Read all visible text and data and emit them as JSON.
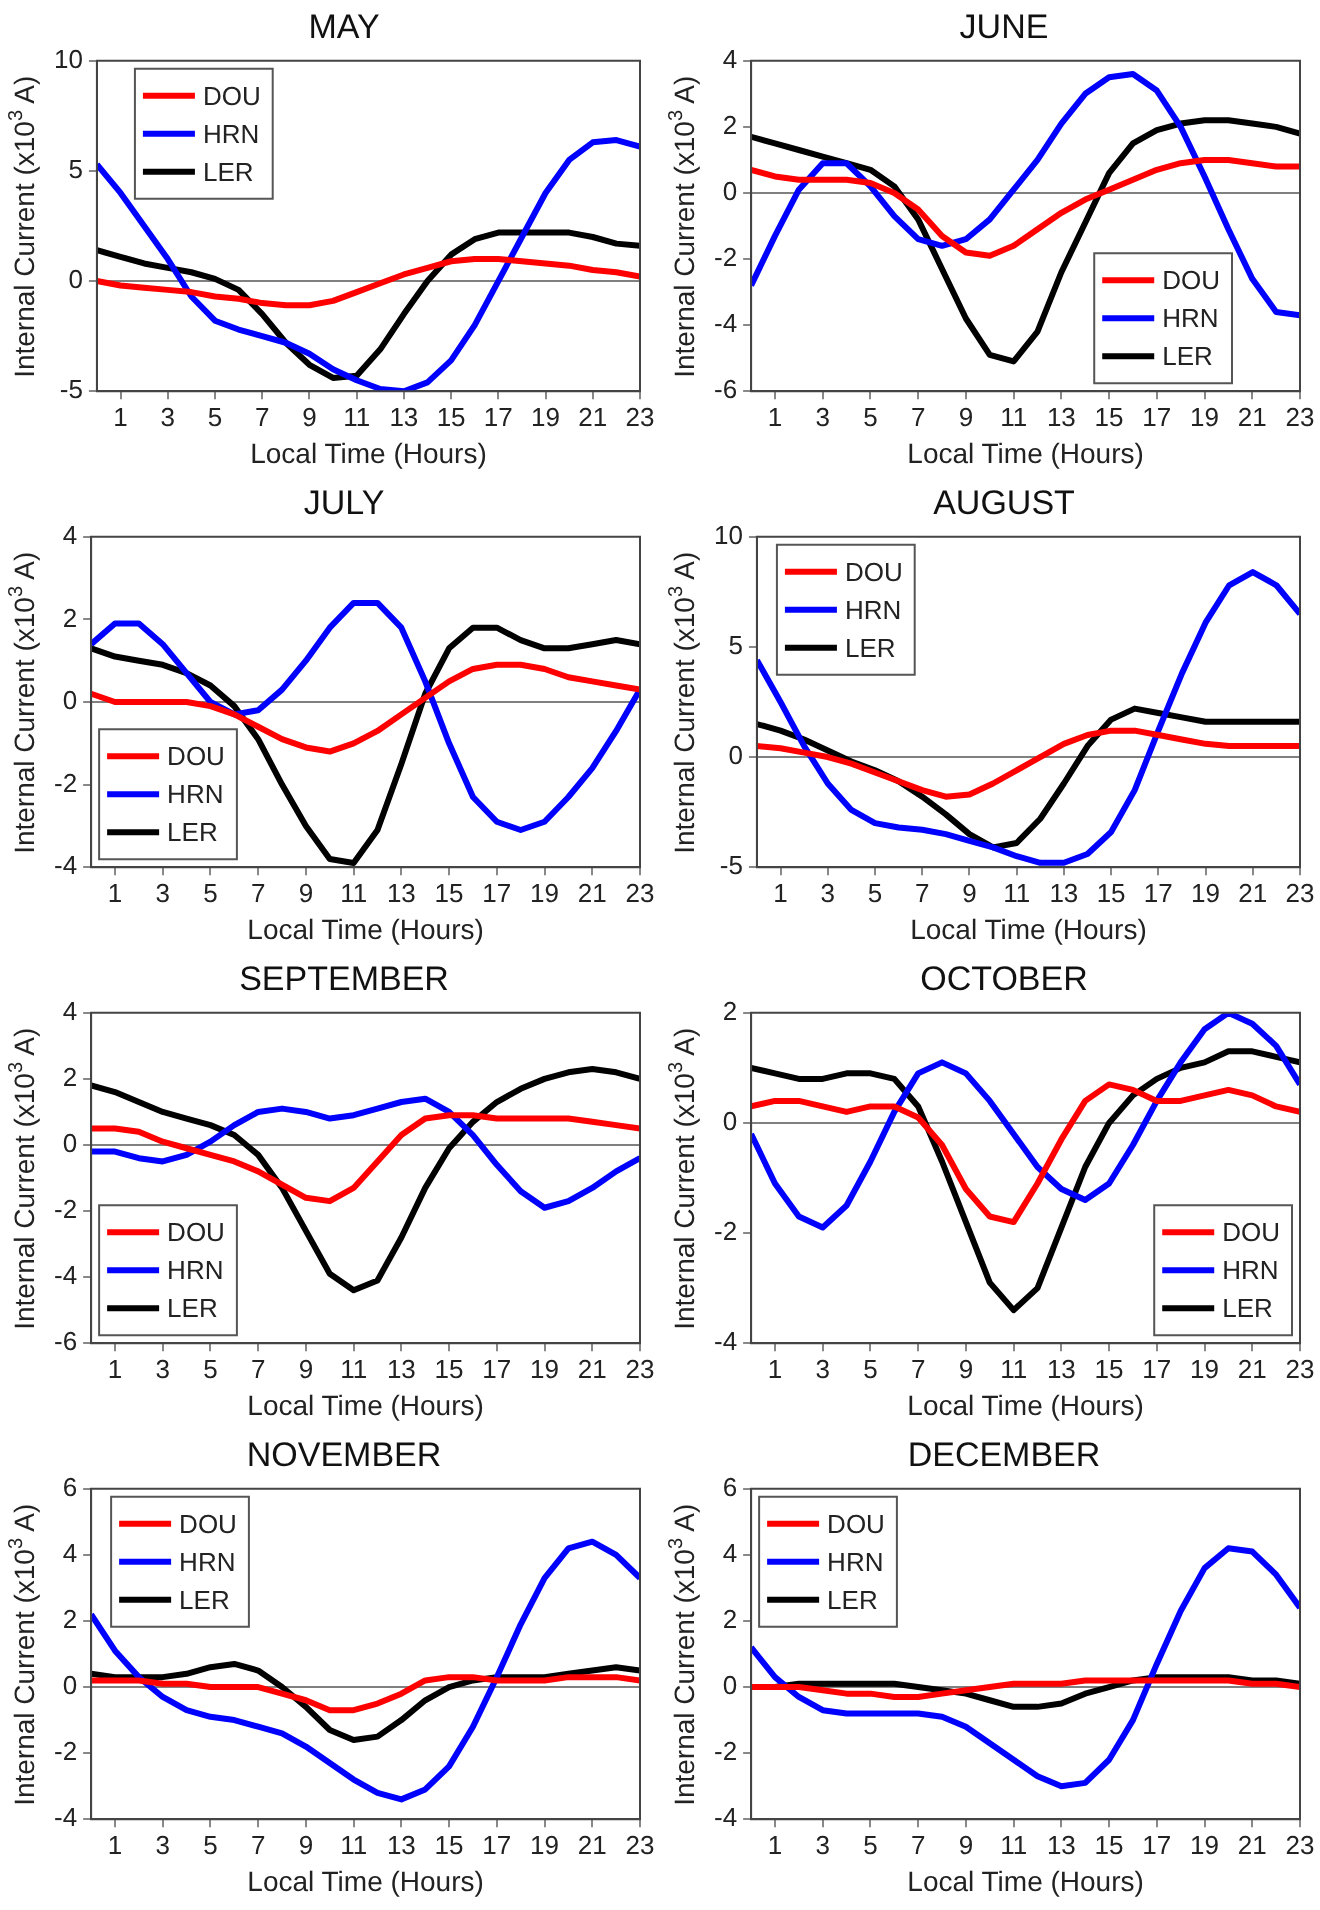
{
  "chart_data": [
    {
      "type": "line",
      "title": "MAY",
      "xlabel": "Local Time (Hours)",
      "ylabel": "Internal Current (x10$^{3}$ A)",
      "x": [
        0,
        1,
        2,
        3,
        4,
        5,
        6,
        7,
        8,
        9,
        10,
        11,
        12,
        13,
        14,
        15,
        16,
        17,
        18,
        19,
        20,
        21,
        22,
        23
      ],
      "xlim": [
        0,
        23
      ],
      "xticks": [
        1,
        3,
        5,
        7,
        9,
        11,
        13,
        15,
        17,
        19,
        21,
        23
      ],
      "ylim": [
        -5,
        10
      ],
      "yticks": [
        -5,
        0,
        5,
        10
      ],
      "legend": "top left",
      "ref_lines": [
        {
          "axis": "y",
          "value": 0,
          "color": "#808080"
        }
      ],
      "series": [
        {
          "name": "DOU",
          "color": "#ff0000",
          "values": [
            0,
            -0.2,
            -0.3,
            -0.4,
            -0.5,
            -0.7,
            -0.8,
            -1.0,
            -1.1,
            -1.1,
            -0.9,
            -0.5,
            -0.1,
            0.3,
            0.6,
            0.9,
            1.0,
            1.0,
            0.9,
            0.8,
            0.7,
            0.5,
            0.4,
            0.2
          ]
        },
        {
          "name": "HRN",
          "color": "#0000ff",
          "values": [
            5.3,
            4.0,
            2.5,
            1.0,
            -0.7,
            -1.8,
            -2.2,
            -2.5,
            -2.8,
            -3.3,
            -4.0,
            -4.5,
            -4.9,
            -5.0,
            -4.6,
            -3.6,
            -2.0,
            0.0,
            2.0,
            4.0,
            5.5,
            6.3,
            6.4,
            6.1
          ]
        },
        {
          "name": "LER",
          "color": "#000000",
          "values": [
            1.4,
            1.1,
            0.8,
            0.6,
            0.4,
            0.1,
            -0.4,
            -1.5,
            -2.8,
            -3.8,
            -4.4,
            -4.3,
            -3.1,
            -1.5,
            0.0,
            1.2,
            1.9,
            2.2,
            2.2,
            2.2,
            2.2,
            2.0,
            1.7,
            1.6
          ]
        }
      ]
    },
    {
      "type": "line",
      "title": "JUNE",
      "xlabel": "Local Time (Hours)",
      "ylabel": "Internal Current (x10$^{3}$ A)",
      "x": [
        0,
        1,
        2,
        3,
        4,
        5,
        6,
        7,
        8,
        9,
        10,
        11,
        12,
        13,
        14,
        15,
        16,
        17,
        18,
        19,
        20,
        21,
        22,
        23
      ],
      "xlim": [
        0,
        23
      ],
      "xticks": [
        1,
        3,
        5,
        7,
        9,
        11,
        13,
        15,
        17,
        19,
        21,
        23
      ],
      "ylim": [
        -6,
        4
      ],
      "yticks": [
        -6,
        -4,
        -2,
        0,
        2,
        4
      ],
      "legend": "bottom right",
      "ref_lines": [
        {
          "axis": "y",
          "value": 0,
          "color": "#808080"
        }
      ],
      "series": [
        {
          "name": "DOU",
          "color": "#ff0000",
          "values": [
            0.7,
            0.5,
            0.4,
            0.4,
            0.4,
            0.3,
            0.0,
            -0.5,
            -1.3,
            -1.8,
            -1.9,
            -1.6,
            -1.1,
            -0.6,
            -0.2,
            0.1,
            0.4,
            0.7,
            0.9,
            1.0,
            1.0,
            0.9,
            0.8,
            0.8
          ]
        },
        {
          "name": "HRN",
          "color": "#0000ff",
          "values": [
            -2.8,
            -1.3,
            0.1,
            0.9,
            0.9,
            0.2,
            -0.7,
            -1.4,
            -1.6,
            -1.4,
            -0.8,
            0.1,
            1.0,
            2.1,
            3.0,
            3.5,
            3.6,
            3.1,
            2.0,
            0.5,
            -1.1,
            -2.6,
            -3.6,
            -3.7
          ]
        },
        {
          "name": "LER",
          "color": "#000000",
          "values": [
            1.7,
            1.5,
            1.3,
            1.1,
            0.9,
            0.7,
            0.2,
            -0.8,
            -2.3,
            -3.8,
            -4.9,
            -5.1,
            -4.2,
            -2.4,
            -0.9,
            0.6,
            1.5,
            1.9,
            2.1,
            2.2,
            2.2,
            2.1,
            2.0,
            1.8
          ]
        }
      ]
    },
    {
      "type": "line",
      "title": "JULY",
      "xlabel": "Local Time (Hours)",
      "ylabel": "Internal Current (x10$^{3}$ A)",
      "x": [
        0,
        1,
        2,
        3,
        4,
        5,
        6,
        7,
        8,
        9,
        10,
        11,
        12,
        13,
        14,
        15,
        16,
        17,
        18,
        19,
        20,
        21,
        22,
        23
      ],
      "xlim": [
        0,
        23
      ],
      "xticks": [
        1,
        3,
        5,
        7,
        9,
        11,
        13,
        15,
        17,
        19,
        21,
        23
      ],
      "ylim": [
        -4,
        4
      ],
      "yticks": [
        -4,
        -2,
        0,
        2,
        4
      ],
      "legend": "bottom left",
      "ref_lines": [
        {
          "axis": "y",
          "value": 0,
          "color": "#808080"
        }
      ],
      "series": [
        {
          "name": "DOU",
          "color": "#ff0000",
          "values": [
            0.2,
            0.0,
            0.0,
            0.0,
            0.0,
            -0.1,
            -0.3,
            -0.6,
            -0.9,
            -1.1,
            -1.2,
            -1.0,
            -0.7,
            -0.3,
            0.1,
            0.5,
            0.8,
            0.9,
            0.9,
            0.8,
            0.6,
            0.5,
            0.4,
            0.3
          ]
        },
        {
          "name": "HRN",
          "color": "#0000ff",
          "values": [
            1.4,
            1.9,
            1.9,
            1.4,
            0.7,
            0.0,
            -0.3,
            -0.2,
            0.3,
            1.0,
            1.8,
            2.4,
            2.4,
            1.8,
            0.5,
            -1.0,
            -2.3,
            -2.9,
            -3.1,
            -2.9,
            -2.3,
            -1.6,
            -0.7,
            0.3
          ]
        },
        {
          "name": "LER",
          "color": "#000000",
          "values": [
            1.3,
            1.1,
            1.0,
            0.9,
            0.7,
            0.4,
            -0.1,
            -0.9,
            -2.0,
            -3.0,
            -3.8,
            -3.9,
            -3.1,
            -1.5,
            0.2,
            1.3,
            1.8,
            1.8,
            1.5,
            1.3,
            1.3,
            1.4,
            1.5,
            1.4
          ]
        }
      ]
    },
    {
      "type": "line",
      "title": "AUGUST",
      "xlabel": "Local Time (Hours)",
      "ylabel": "Internal Current (x10$^{3}$ A)",
      "x": [
        0,
        1,
        2,
        3,
        4,
        5,
        6,
        7,
        8,
        9,
        10,
        11,
        12,
        13,
        14,
        15,
        16,
        17,
        18,
        19,
        20,
        21,
        22,
        23
      ],
      "xlim": [
        0,
        23
      ],
      "xticks": [
        1,
        3,
        5,
        7,
        9,
        11,
        13,
        15,
        17,
        19,
        21,
        23
      ],
      "ylim": [
        -5,
        10
      ],
      "yticks": [
        -5,
        0,
        5,
        10
      ],
      "legend": "top left",
      "ref_lines": [
        {
          "axis": "y",
          "value": 0,
          "color": "#808080"
        }
      ],
      "series": [
        {
          "name": "DOU",
          "color": "#ff0000",
          "values": [
            0.5,
            0.4,
            0.2,
            0.0,
            -0.3,
            -0.7,
            -1.1,
            -1.5,
            -1.8,
            -1.7,
            -1.2,
            -0.6,
            0.0,
            0.6,
            1.0,
            1.2,
            1.2,
            1.0,
            0.8,
            0.6,
            0.5,
            0.5,
            0.5,
            0.5
          ]
        },
        {
          "name": "HRN",
          "color": "#0000ff",
          "values": [
            4.4,
            2.5,
            0.5,
            -1.2,
            -2.4,
            -3.0,
            -3.2,
            -3.3,
            -3.5,
            -3.8,
            -4.1,
            -4.5,
            -4.8,
            -4.8,
            -4.4,
            -3.4,
            -1.5,
            1.2,
            3.8,
            6.1,
            7.8,
            8.4,
            7.8,
            6.5
          ]
        },
        {
          "name": "LER",
          "color": "#000000",
          "values": [
            1.5,
            1.2,
            0.8,
            0.3,
            -0.2,
            -0.6,
            -1.1,
            -1.8,
            -2.6,
            -3.5,
            -4.1,
            -3.9,
            -2.8,
            -1.2,
            0.5,
            1.7,
            2.2,
            2.0,
            1.8,
            1.6,
            1.6,
            1.6,
            1.6,
            1.6
          ]
        }
      ]
    },
    {
      "type": "line",
      "title": "SEPTEMBER",
      "xlabel": "Local Time (Hours)",
      "ylabel": "Internal Current (x10$^{3}$ A)",
      "x": [
        0,
        1,
        2,
        3,
        4,
        5,
        6,
        7,
        8,
        9,
        10,
        11,
        12,
        13,
        14,
        15,
        16,
        17,
        18,
        19,
        20,
        21,
        22,
        23
      ],
      "xlim": [
        0,
        23
      ],
      "xticks": [
        1,
        3,
        5,
        7,
        9,
        11,
        13,
        15,
        17,
        19,
        21,
        23
      ],
      "ylim": [
        -6,
        4
      ],
      "yticks": [
        -6,
        -4,
        -2,
        0,
        2,
        4
      ],
      "legend": "bottom left",
      "ref_lines": [
        {
          "axis": "y",
          "value": 0,
          "color": "#808080"
        }
      ],
      "series": [
        {
          "name": "DOU",
          "color": "#ff0000",
          "values": [
            0.5,
            0.5,
            0.4,
            0.1,
            -0.1,
            -0.3,
            -0.5,
            -0.8,
            -1.2,
            -1.6,
            -1.7,
            -1.3,
            -0.5,
            0.3,
            0.8,
            0.9,
            0.9,
            0.8,
            0.8,
            0.8,
            0.8,
            0.7,
            0.6,
            0.5
          ]
        },
        {
          "name": "HRN",
          "color": "#0000ff",
          "values": [
            -0.2,
            -0.2,
            -0.4,
            -0.5,
            -0.3,
            0.1,
            0.6,
            1.0,
            1.1,
            1.0,
            0.8,
            0.9,
            1.1,
            1.3,
            1.4,
            1.0,
            0.3,
            -0.6,
            -1.4,
            -1.9,
            -1.7,
            -1.3,
            -0.8,
            -0.4
          ]
        },
        {
          "name": "LER",
          "color": "#000000",
          "values": [
            1.8,
            1.6,
            1.3,
            1.0,
            0.8,
            0.6,
            0.3,
            -0.3,
            -1.3,
            -2.6,
            -3.9,
            -4.4,
            -4.1,
            -2.8,
            -1.3,
            -0.1,
            0.7,
            1.3,
            1.7,
            2.0,
            2.2,
            2.3,
            2.2,
            2.0
          ]
        }
      ]
    },
    {
      "type": "line",
      "title": "OCTOBER",
      "xlabel": "Local Time (Hours)",
      "ylabel": "Internal Current (x10$^{3}$ A)",
      "x": [
        0,
        1,
        2,
        3,
        4,
        5,
        6,
        7,
        8,
        9,
        10,
        11,
        12,
        13,
        14,
        15,
        16,
        17,
        18,
        19,
        20,
        21,
        22,
        23
      ],
      "xlim": [
        0,
        23
      ],
      "xticks": [
        1,
        3,
        5,
        7,
        9,
        11,
        13,
        15,
        17,
        19,
        21,
        23
      ],
      "ylim": [
        -4,
        2
      ],
      "yticks": [
        -4,
        -2,
        0,
        2
      ],
      "legend": "bottom right",
      "ref_lines": [
        {
          "axis": "y",
          "value": 0,
          "color": "#808080"
        }
      ],
      "series": [
        {
          "name": "DOU",
          "color": "#ff0000",
          "values": [
            0.3,
            0.4,
            0.4,
            0.3,
            0.2,
            0.3,
            0.3,
            0.1,
            -0.4,
            -1.2,
            -1.7,
            -1.8,
            -1.1,
            -0.3,
            0.4,
            0.7,
            0.6,
            0.4,
            0.4,
            0.5,
            0.6,
            0.5,
            0.3,
            0.2
          ]
        },
        {
          "name": "HRN",
          "color": "#0000ff",
          "values": [
            -0.2,
            -1.1,
            -1.7,
            -1.9,
            -1.5,
            -0.7,
            0.2,
            0.9,
            1.1,
            0.9,
            0.4,
            -0.2,
            -0.8,
            -1.2,
            -1.4,
            -1.1,
            -0.4,
            0.4,
            1.1,
            1.7,
            2.0,
            1.8,
            1.4,
            0.7
          ]
        },
        {
          "name": "LER",
          "color": "#000000",
          "values": [
            1.0,
            0.9,
            0.8,
            0.8,
            0.9,
            0.9,
            0.8,
            0.3,
            -0.7,
            -1.8,
            -2.9,
            -3.4,
            -3.0,
            -1.9,
            -0.8,
            0.0,
            0.5,
            0.8,
            1.0,
            1.1,
            1.3,
            1.3,
            1.2,
            1.1
          ]
        }
      ]
    },
    {
      "type": "line",
      "title": "NOVEMBER",
      "xlabel": "Local Time (Hours)",
      "ylabel": "Internal Current (x10$^{3}$ A)",
      "x": [
        0,
        1,
        2,
        3,
        4,
        5,
        6,
        7,
        8,
        9,
        10,
        11,
        12,
        13,
        14,
        15,
        16,
        17,
        18,
        19,
        20,
        21,
        22,
        23
      ],
      "xlim": [
        0,
        23
      ],
      "xticks": [
        1,
        3,
        5,
        7,
        9,
        11,
        13,
        15,
        17,
        19,
        21,
        23
      ],
      "ylim": [
        -4,
        6
      ],
      "yticks": [
        -4,
        -2,
        0,
        2,
        4,
        6
      ],
      "legend": "top left",
      "ref_lines": [
        {
          "axis": "y",
          "value": 0,
          "color": "#808080"
        }
      ],
      "series": [
        {
          "name": "DOU",
          "color": "#ff0000",
          "values": [
            0.2,
            0.2,
            0.2,
            0.1,
            0.1,
            0.0,
            0.0,
            0.0,
            -0.2,
            -0.4,
            -0.7,
            -0.7,
            -0.5,
            -0.2,
            0.2,
            0.3,
            0.3,
            0.2,
            0.2,
            0.2,
            0.3,
            0.3,
            0.3,
            0.2
          ]
        },
        {
          "name": "HRN",
          "color": "#0000ff",
          "values": [
            2.2,
            1.1,
            0.3,
            -0.3,
            -0.7,
            -0.9,
            -1.0,
            -1.2,
            -1.4,
            -1.8,
            -2.3,
            -2.8,
            -3.2,
            -3.4,
            -3.1,
            -2.4,
            -1.2,
            0.3,
            1.9,
            3.3,
            4.2,
            4.4,
            4.0,
            3.3
          ]
        },
        {
          "name": "LER",
          "color": "#000000",
          "values": [
            0.4,
            0.3,
            0.3,
            0.3,
            0.4,
            0.6,
            0.7,
            0.5,
            0.0,
            -0.6,
            -1.3,
            -1.6,
            -1.5,
            -1.0,
            -0.4,
            0.0,
            0.2,
            0.3,
            0.3,
            0.3,
            0.4,
            0.5,
            0.6,
            0.5
          ]
        }
      ]
    },
    {
      "type": "line",
      "title": "DECEMBER",
      "xlabel": "Local Time (Hours)",
      "ylabel": "Internal Current (x10$^{3}$ A)",
      "x": [
        0,
        1,
        2,
        3,
        4,
        5,
        6,
        7,
        8,
        9,
        10,
        11,
        12,
        13,
        14,
        15,
        16,
        17,
        18,
        19,
        20,
        21,
        22,
        23
      ],
      "xlim": [
        0,
        23
      ],
      "xticks": [
        1,
        3,
        5,
        7,
        9,
        11,
        13,
        15,
        17,
        19,
        21,
        23
      ],
      "ylim": [
        -4,
        6
      ],
      "yticks": [
        -4,
        -2,
        0,
        2,
        4,
        6
      ],
      "legend": "top left",
      "ref_lines": [
        {
          "axis": "y",
          "value": 0,
          "color": "#808080"
        }
      ],
      "series": [
        {
          "name": "DOU",
          "color": "#ff0000",
          "values": [
            0.0,
            0.0,
            0.0,
            -0.1,
            -0.2,
            -0.2,
            -0.3,
            -0.3,
            -0.2,
            -0.1,
            0.0,
            0.1,
            0.1,
            0.1,
            0.2,
            0.2,
            0.2,
            0.2,
            0.2,
            0.2,
            0.2,
            0.1,
            0.1,
            0.0
          ]
        },
        {
          "name": "HRN",
          "color": "#0000ff",
          "values": [
            1.2,
            0.3,
            -0.3,
            -0.7,
            -0.8,
            -0.8,
            -0.8,
            -0.8,
            -0.9,
            -1.2,
            -1.7,
            -2.2,
            -2.7,
            -3.0,
            -2.9,
            -2.2,
            -1.0,
            0.7,
            2.3,
            3.6,
            4.2,
            4.1,
            3.4,
            2.4
          ]
        },
        {
          "name": "LER",
          "color": "#000000",
          "values": [
            0.0,
            0.0,
            0.1,
            0.1,
            0.1,
            0.1,
            0.1,
            0.0,
            -0.1,
            -0.2,
            -0.4,
            -0.6,
            -0.6,
            -0.5,
            -0.2,
            0.0,
            0.2,
            0.3,
            0.3,
            0.3,
            0.3,
            0.2,
            0.2,
            0.1
          ]
        }
      ]
    }
  ]
}
